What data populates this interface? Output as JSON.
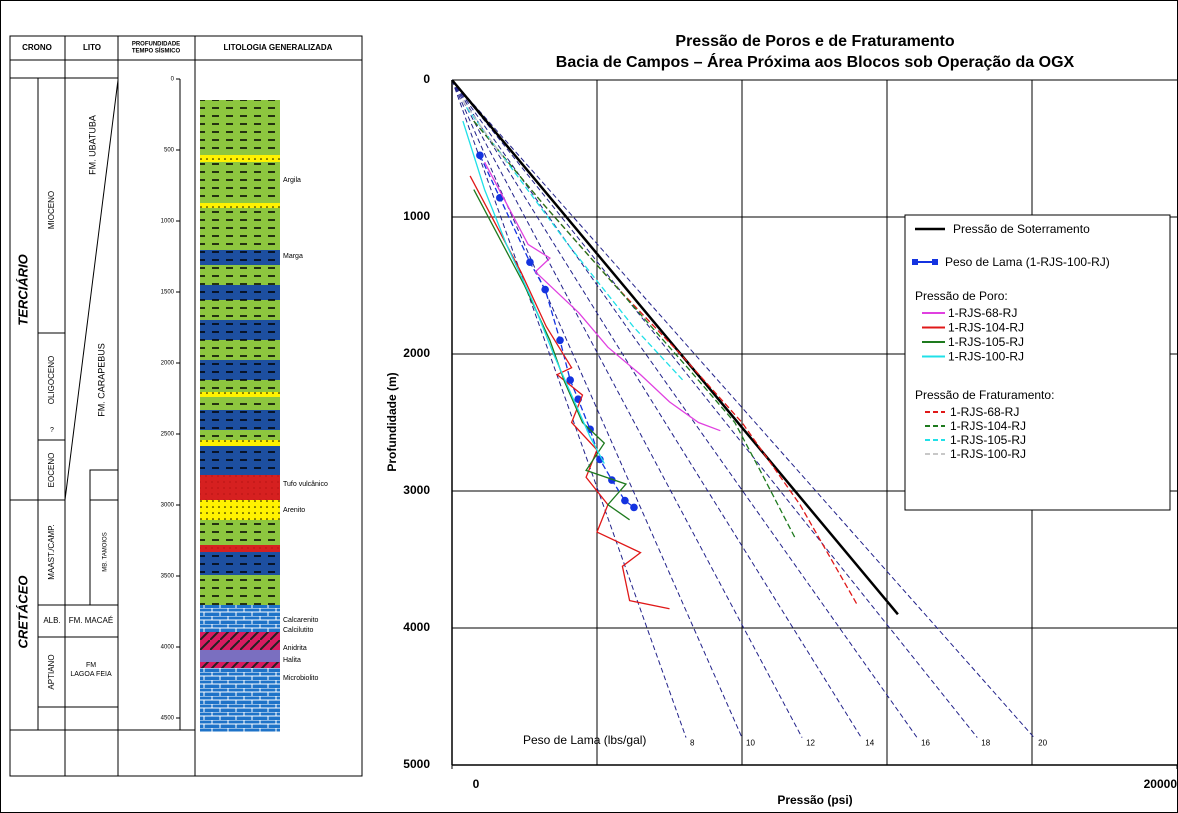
{
  "column": {
    "headers": [
      "CRONO",
      "LITO",
      "PROFUNDIDADE",
      "TEMPO SÍSMICO",
      "LITOLOGIA GENERALIZADA"
    ],
    "eras": [
      "TERCIÁRIO",
      "CRETÁCEO"
    ],
    "epochs": [
      "MIOCENO",
      "OLIGOCENO",
      "?",
      "EOCENO",
      "MAAST./CAMP.",
      "ALB.",
      "APTIANO"
    ],
    "formations": [
      "FM. UBATUBA",
      "FM. CARAPEBUS",
      "MB. TAMOIOS",
      "FM. MACAÉ",
      "FM",
      "LAGOA FEIA"
    ],
    "depths": [
      0,
      500,
      1000,
      1500,
      2000,
      2500,
      3000,
      3500,
      4000,
      4500
    ],
    "lithologies": [
      "Argila",
      "Marga",
      "Tufo vulcânico",
      "Arenito",
      "Calcarenito",
      "Calcilutito",
      "Anidrita",
      "Halita",
      "Microbiolito"
    ]
  },
  "chart_data": {
    "type": "line",
    "title": "Pressão de Poros e de Fraturamento",
    "subtitle": "Bacia de Campos – Área Próxima aos Blocos sob Operação da OGX",
    "x_label": "Pressão (psi)",
    "y_label": "Profundidade (m)",
    "xlim": [
      0,
      20000
    ],
    "ylim": [
      0,
      5000
    ],
    "y_inverted": true,
    "xticks": [
      0,
      20000
    ],
    "xgrid": [
      4000,
      8000,
      12000,
      16000
    ],
    "yticks": [
      0,
      1000,
      2000,
      3000,
      4000,
      5000
    ],
    "grid": true,
    "mud_lines": {
      "label": "Peso de Lama (lbs/gal)",
      "color": "#22228a",
      "weights": [
        8,
        10,
        12,
        14,
        16,
        18,
        20
      ],
      "x": [
        6456,
        8000,
        9657,
        11290,
        12830,
        14490,
        16060
      ],
      "depth": 4800
    },
    "series": [
      {
        "name": "Pressão de Soterramento",
        "color": "#000000",
        "width": 2.5,
        "x": [
          0,
          12300
        ],
        "values": [
          0,
          3900
        ]
      },
      {
        "name": "Peso de Lama (1-RJS-100-RJ)",
        "color": "#1433e0",
        "marker": true,
        "x": [
          770,
          1320,
          2150,
          2570,
          2980,
          3260,
          3480,
          3810,
          4080,
          4410,
          4770,
          5020
        ],
        "values": [
          550,
          860,
          1330,
          1530,
          1900,
          2190,
          2330,
          2550,
          2770,
          2920,
          3070,
          3120
        ]
      }
    ],
    "pore": {
      "title": "Pressão de Poro:",
      "series": [
        {
          "name": "1-RJS-68-RJ",
          "color": "#e040e0",
          "x": [
            900,
            1500,
            2100,
            2700,
            2300,
            3500,
            4300,
            5200,
            6000,
            6800,
            7400
          ],
          "values": [
            600,
            900,
            1200,
            1300,
            1400,
            1700,
            1950,
            2150,
            2350,
            2500,
            2560
          ]
        },
        {
          "name": "1-RJS-104-RJ",
          "color": "#e01818",
          "x": [
            500,
            1300,
            1900,
            2600,
            3300,
            2900,
            3600,
            3300,
            4000,
            3700,
            4300,
            4000,
            5200,
            4700,
            4900,
            6000
          ],
          "values": [
            700,
            1100,
            1400,
            1800,
            2100,
            2150,
            2300,
            2500,
            2700,
            2900,
            3100,
            3300,
            3450,
            3550,
            3800,
            3860
          ]
        },
        {
          "name": "1-RJS-105-RJ",
          "color": "#1e7a1e",
          "x": [
            600,
            1400,
            2000,
            2700,
            3100,
            3600,
            4200,
            3700,
            4800,
            4300,
            4900
          ],
          "values": [
            800,
            1200,
            1500,
            1900,
            2200,
            2500,
            2650,
            2850,
            2950,
            3100,
            3210
          ]
        },
        {
          "name": "1-RJS-100-RJ",
          "color": "#20e0e8",
          "x": [
            300,
            900,
            1500,
            2200,
            2800,
            3300,
            3800,
            4200
          ],
          "values": [
            300,
            800,
            1200,
            1600,
            2000,
            2300,
            2600,
            2800
          ]
        }
      ]
    },
    "frac": {
      "title": "Pressão de Fraturamento:",
      "series": [
        {
          "name": "1-RJS-68-RJ",
          "color": "#e01818",
          "dash": true,
          "x": [
            600,
            2500,
            4500,
            6300,
            8000,
            9600,
            11200
          ],
          "values": [
            300,
            900,
            1500,
            2000,
            2500,
            3100,
            3840
          ]
        },
        {
          "name": "1-RJS-104-RJ",
          "color": "#1e7a1e",
          "dash": true,
          "x": [
            600,
            2500,
            4500,
            6500,
            7800,
            8500,
            9460
          ],
          "values": [
            300,
            900,
            1500,
            2100,
            2500,
            2850,
            3340
          ]
        },
        {
          "name": "1-RJS-105-RJ",
          "color": "#20e0e8",
          "dash": true,
          "x": [
            400,
            1800,
            3200,
            5000,
            6400
          ],
          "values": [
            200,
            700,
            1200,
            1800,
            2200
          ]
        },
        {
          "name": "1-RJS-100-RJ",
          "color": "#c8c8c8",
          "dash": true,
          "x": [
            300,
            1500
          ],
          "values": [
            150,
            600
          ]
        }
      ]
    }
  }
}
